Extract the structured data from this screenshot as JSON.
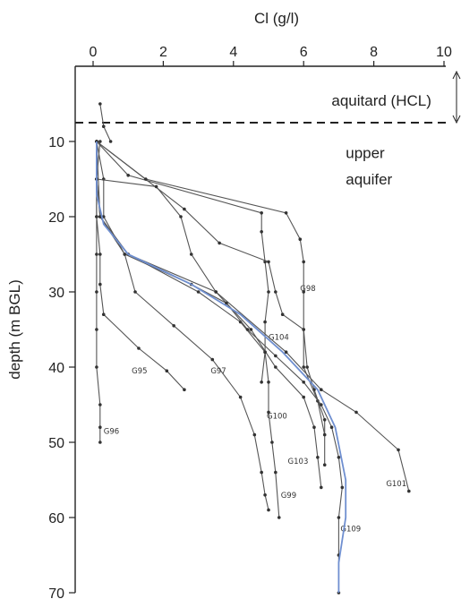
{
  "chart_data": {
    "type": "line",
    "xlabel": "Cl (g/l)",
    "ylabel": "depth (m BGL)",
    "xlim": [
      0,
      10
    ],
    "ylim": [
      70,
      0
    ],
    "x_ticks": [
      0,
      2,
      4,
      6,
      8,
      10
    ],
    "y_ticks": [
      10,
      20,
      30,
      40,
      50,
      60,
      70
    ],
    "x_axis_position": "top",
    "colors": {
      "profile": "#555555",
      "mean": "#6f8fd0",
      "axis": "#222222"
    },
    "annotations": [
      {
        "text": "aquitard (HCL)",
        "x": 7.0,
        "y": 4.5
      },
      {
        "text": "upper",
        "x": 7.2,
        "y": 11.5
      },
      {
        "text": "aquifer",
        "x": 7.2,
        "y": 15.0
      }
    ],
    "boundary": {
      "style": "dashed",
      "depth": 7.5
    },
    "series": [
      {
        "name": "G96",
        "label_at": [
          0.3,
          48.5
        ],
        "points": [
          [
            0.1,
            10
          ],
          [
            0.1,
            15
          ],
          [
            0.1,
            20
          ],
          [
            0.1,
            25
          ],
          [
            0.1,
            30
          ],
          [
            0.1,
            35
          ],
          [
            0.1,
            40
          ],
          [
            0.2,
            45
          ],
          [
            0.2,
            48
          ],
          [
            0.2,
            50
          ]
        ]
      },
      {
        "name": "G95",
        "label_at": [
          1.1,
          40.5
        ],
        "points": [
          [
            0.2,
            10
          ],
          [
            0.1,
            15
          ],
          [
            0.1,
            20
          ],
          [
            0.2,
            25
          ],
          [
            0.2,
            29
          ],
          [
            0.3,
            33
          ],
          [
            1.3,
            37.5
          ],
          [
            2.1,
            40.5
          ],
          [
            2.6,
            43
          ]
        ]
      },
      {
        "name": "G97",
        "label_at": [
          3.35,
          40.5
        ],
        "points": [
          [
            0.1,
            10
          ],
          [
            0.3,
            15
          ],
          [
            0.3,
            20
          ],
          [
            0.9,
            25
          ],
          [
            1.2,
            30
          ],
          [
            2.3,
            34.5
          ],
          [
            3.4,
            39
          ],
          [
            4.2,
            44
          ],
          [
            4.6,
            49
          ],
          [
            4.8,
            54
          ],
          [
            4.9,
            57
          ],
          [
            5.0,
            59
          ]
        ]
      },
      {
        "name": "G98",
        "label_at": [
          5.9,
          29.5
        ],
        "points": [
          [
            0.1,
            10
          ],
          [
            1.0,
            14.5
          ],
          [
            4.8,
            19.5
          ],
          [
            4.8,
            22
          ],
          [
            4.9,
            26
          ],
          [
            5.0,
            30
          ],
          [
            4.9,
            34
          ],
          [
            4.9,
            38
          ],
          [
            4.8,
            42
          ]
        ]
      },
      {
        "name": "G104",
        "label_at": [
          5.0,
          36.0
        ],
        "points": [
          [
            0.1,
            10
          ],
          [
            2.6,
            19
          ],
          [
            3.6,
            23.5
          ],
          [
            5.0,
            26
          ],
          [
            5.2,
            30
          ],
          [
            5.4,
            33
          ],
          [
            6.0,
            35
          ],
          [
            6.1,
            40
          ],
          [
            6.3,
            43
          ],
          [
            6.6,
            47
          ],
          [
            6.6,
            53
          ]
        ]
      },
      {
        "name": "G100",
        "label_at": [
          4.95,
          46.5
        ],
        "points": [
          [
            0.1,
            10
          ],
          [
            1.5,
            15
          ],
          [
            5.5,
            19.5
          ],
          [
            5.9,
            23
          ],
          [
            6.0,
            26
          ],
          [
            6.0,
            30
          ],
          [
            6.0,
            35
          ],
          [
            6.0,
            40
          ],
          [
            6.4,
            44.5
          ],
          [
            6.6,
            49
          ]
        ]
      },
      {
        "name": "G103",
        "label_at": [
          5.55,
          52.5
        ],
        "points": [
          [
            0.1,
            15
          ],
          [
            1.8,
            16
          ],
          [
            2.5,
            20
          ],
          [
            2.8,
            25
          ],
          [
            3.5,
            30
          ],
          [
            4.5,
            35
          ],
          [
            5.2,
            40
          ],
          [
            6.0,
            44
          ],
          [
            6.3,
            48
          ],
          [
            6.4,
            52
          ],
          [
            6.5,
            56
          ]
        ]
      },
      {
        "name": "G99",
        "label_at": [
          5.35,
          57.0
        ],
        "points": [
          [
            0.1,
            15
          ],
          [
            0.2,
            20
          ],
          [
            1.0,
            25
          ],
          [
            3.0,
            30
          ],
          [
            4.2,
            34
          ],
          [
            4.9,
            38
          ],
          [
            5.0,
            42
          ],
          [
            5.0,
            46
          ],
          [
            5.1,
            50
          ],
          [
            5.2,
            54
          ],
          [
            5.3,
            60
          ]
        ]
      },
      {
        "name": "G101",
        "label_at": [
          8.35,
          55.5
        ],
        "points": [
          [
            0.1,
            15
          ],
          [
            0.2,
            20
          ],
          [
            1.0,
            25
          ],
          [
            3.5,
            30
          ],
          [
            5.5,
            38
          ],
          [
            6.5,
            43
          ],
          [
            7.5,
            46
          ],
          [
            8.7,
            51
          ],
          [
            9.0,
            56.5
          ]
        ]
      },
      {
        "name": "G109",
        "label_at": [
          7.05,
          61.5
        ],
        "points": [
          [
            0.1,
            10
          ],
          [
            0.2,
            20
          ],
          [
            0.9,
            25
          ],
          [
            2.8,
            29
          ],
          [
            3.8,
            31.5
          ],
          [
            4.4,
            35
          ],
          [
            5.2,
            38.5
          ],
          [
            6.0,
            42
          ],
          [
            6.5,
            45
          ],
          [
            6.8,
            48
          ],
          [
            7.0,
            52
          ],
          [
            7.1,
            56
          ],
          [
            7.0,
            60
          ],
          [
            7.0,
            65
          ],
          [
            7.0,
            70
          ]
        ]
      },
      {
        "name": "",
        "label_at": null,
        "points": [
          [
            0.2,
            5
          ],
          [
            0.3,
            8
          ],
          [
            0.5,
            10
          ]
        ]
      }
    ],
    "mean_profile": {
      "points": [
        [
          0.1,
          10
        ],
        [
          0.1,
          17
        ],
        [
          0.3,
          21
        ],
        [
          1.0,
          25
        ],
        [
          2.8,
          29
        ],
        [
          4.2,
          33
        ],
        [
          5.4,
          38
        ],
        [
          6.4,
          43
        ],
        [
          6.9,
          48
        ],
        [
          7.2,
          55
        ],
        [
          7.2,
          60
        ],
        [
          7.0,
          66
        ],
        [
          7.0,
          70
        ]
      ]
    }
  }
}
